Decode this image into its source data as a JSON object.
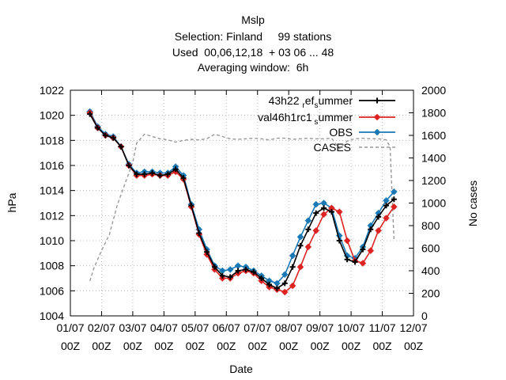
{
  "chart_data": {
    "type": "line",
    "title_lines": [
      "Mslp",
      "Selection: Finland     99 stations",
      "Used  00,06,12,18  + 03 06 ... 48",
      "Averaging window:  6h"
    ],
    "xlabel": "Date",
    "ylabel": "hPa",
    "y2label": "No cases",
    "ylim": [
      1004,
      1022
    ],
    "y2lim": [
      0,
      2000
    ],
    "xlim": [
      0,
      11
    ],
    "x_ticks": [
      {
        "x": 0,
        "line1": "01/07",
        "line2": "00Z"
      },
      {
        "x": 1,
        "line1": "02/07",
        "line2": "00Z"
      },
      {
        "x": 2,
        "line1": "03/07",
        "line2": "00Z"
      },
      {
        "x": 3,
        "line1": "04/07",
        "line2": "00Z"
      },
      {
        "x": 4,
        "line1": "05/07",
        "line2": "00Z"
      },
      {
        "x": 5,
        "line1": "06/07",
        "line2": "00Z"
      },
      {
        "x": 6,
        "line1": "07/07",
        "line2": "00Z"
      },
      {
        "x": 7,
        "line1": "08/07",
        "line2": "00Z"
      },
      {
        "x": 8,
        "line1": "09/07",
        "line2": "00Z"
      },
      {
        "x": 9,
        "line1": "10/07",
        "line2": "00Z"
      },
      {
        "x": 10,
        "line1": "11/07",
        "line2": "00Z"
      },
      {
        "x": 11,
        "line1": "12/07",
        "line2": "00Z"
      }
    ],
    "y_ticks": [
      1004,
      1006,
      1008,
      1010,
      1012,
      1014,
      1016,
      1018,
      1020,
      1022
    ],
    "y2_ticks": [
      0,
      200,
      400,
      600,
      800,
      1000,
      1200,
      1400,
      1600,
      1800,
      2000
    ],
    "grid": true,
    "legend_position": "top-right",
    "x": [
      0.625,
      0.875,
      1.125,
      1.375,
      1.625,
      1.875,
      2.125,
      2.375,
      2.625,
      2.875,
      3.125,
      3.375,
      3.625,
      3.875,
      4.125,
      4.375,
      4.625,
      4.875,
      5.125,
      5.375,
      5.625,
      5.875,
      6.125,
      6.375,
      6.625,
      6.875,
      7.125,
      7.375,
      7.625,
      7.875,
      8.125,
      8.375,
      8.625,
      8.875,
      9.125,
      9.375,
      9.625,
      9.875,
      10.125,
      10.375
    ],
    "series": [
      {
        "name_base": "43h22",
        "name_sub1": "ref",
        "name_mid": "",
        "name_sub2": "s",
        "name_end": "ummer",
        "color": "#000000",
        "marker": "plus",
        "values": [
          1020.1,
          1019.0,
          1018.4,
          1018.2,
          1017.5,
          1016.0,
          1015.3,
          1015.3,
          1015.4,
          1015.2,
          1015.3,
          1015.7,
          1015.0,
          1012.8,
          1010.6,
          1009.1,
          1007.9,
          1007.2,
          1007.1,
          1007.6,
          1007.7,
          1007.5,
          1007.0,
          1006.5,
          1006.2,
          1006.6,
          1007.9,
          1009.6,
          1010.9,
          1012.2,
          1012.6,
          1012.3,
          1010.0,
          1008.5,
          1008.3,
          1009.3,
          1010.9,
          1011.9,
          1012.8,
          1013.3
        ]
      },
      {
        "name_base": "val46h1rc1",
        "name_sub1": "",
        "name_mid": "",
        "name_sub2": "s",
        "name_end": "ummer",
        "color": "#dd2222",
        "marker": "star",
        "values": [
          1020.2,
          1019.0,
          1018.4,
          1018.2,
          1017.5,
          1016.0,
          1015.2,
          1015.2,
          1015.3,
          1015.2,
          1015.2,
          1015.5,
          1014.9,
          1012.7,
          1010.5,
          1008.9,
          1007.7,
          1007.0,
          1007.0,
          1007.4,
          1007.6,
          1007.4,
          1006.8,
          1006.3,
          1006.1,
          1005.9,
          1006.4,
          1007.9,
          1009.5,
          1010.8,
          1012.1,
          1012.6,
          1012.3,
          1010.0,
          1008.4,
          1008.2,
          1009.2,
          1010.8,
          1011.8,
          1012.7
        ]
      },
      {
        "name_base": "OBS",
        "name_sub1": "",
        "name_mid": "",
        "name_sub2": "",
        "name_end": "",
        "color": "#1a78b4",
        "marker": "star",
        "values": [
          1020.3,
          1019.1,
          1018.5,
          1018.3,
          1017.5,
          1016.1,
          1015.4,
          1015.5,
          1015.5,
          1015.4,
          1015.4,
          1015.9,
          1015.2,
          1012.9,
          1010.9,
          1009.3,
          1008.0,
          1007.6,
          1007.7,
          1008.0,
          1007.9,
          1007.6,
          1007.2,
          1006.8,
          1006.6,
          1007.3,
          1008.8,
          1010.3,
          1011.6,
          1012.9,
          1013.0,
          1012.6,
          1010.4,
          1008.8,
          1008.6,
          1009.5,
          1011.2,
          1012.2,
          1013.2,
          1013.9
        ]
      }
    ],
    "cases": {
      "name": "CASES",
      "color": "#999999",
      "axis": "y2",
      "x": [
        0.625,
        0.75,
        1.0,
        1.25,
        1.5,
        1.75,
        2.0,
        2.125,
        2.375,
        2.625,
        2.875,
        3.125,
        3.375,
        3.625,
        3.875,
        4.125,
        4.375,
        4.625,
        4.875,
        5.125,
        5.375,
        5.625,
        5.875,
        6.125,
        6.375,
        6.625,
        6.875,
        7.125,
        7.375,
        7.625,
        7.875,
        8.125,
        8.375,
        8.625,
        8.875,
        9.125,
        9.375,
        9.625,
        9.875,
        10.125,
        10.25,
        10.375
      ],
      "values": [
        310,
        420,
        580,
        720,
        980,
        1170,
        1360,
        1530,
        1610,
        1590,
        1570,
        1560,
        1540,
        1555,
        1565,
        1560,
        1570,
        1610,
        1590,
        1570,
        1565,
        1570,
        1575,
        1570,
        1560,
        1575,
        1575,
        1565,
        1570,
        1575,
        1570,
        1570,
        1575,
        1480,
        1550,
        1570,
        1575,
        1570,
        1570,
        1560,
        1500,
        680
      ]
    }
  }
}
